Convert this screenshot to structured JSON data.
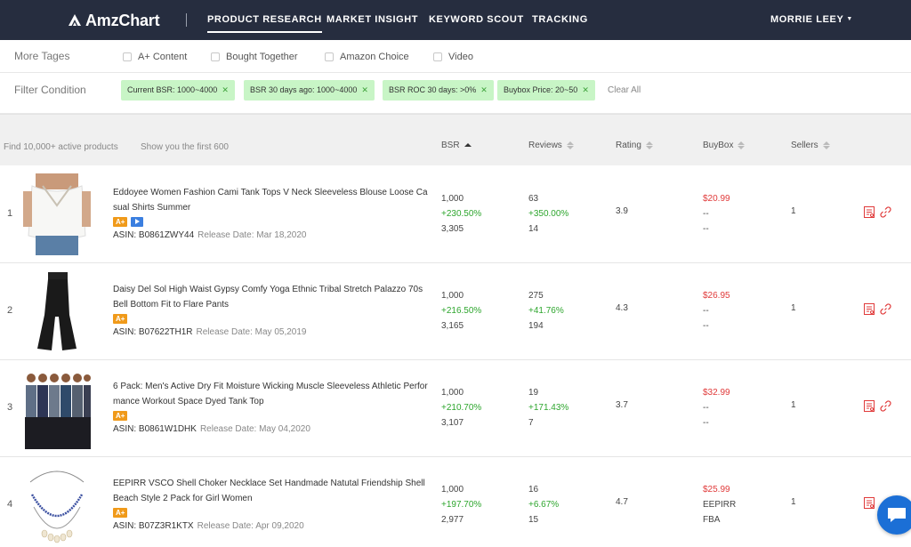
{
  "brand": {
    "name": "AmzChart"
  },
  "nav": {
    "items": [
      {
        "label": "PRODUCT RESEARCH",
        "active": true
      },
      {
        "label": "MARKET INSIGHT",
        "active": false
      },
      {
        "label": "KEYWORD SCOUT",
        "active": false
      },
      {
        "label": "TRACKING",
        "active": false
      }
    ],
    "user": "MORRIE LEEY"
  },
  "tags": {
    "label": "More Tages",
    "options": [
      {
        "label": "A+ Content",
        "checked": false
      },
      {
        "label": "Bought Together",
        "checked": false
      },
      {
        "label": "Amazon Choice",
        "checked": false
      },
      {
        "label": "Video",
        "checked": false
      }
    ]
  },
  "filters": {
    "label": "Filter Condition",
    "chips": [
      "Current BSR: 1000~4000",
      "BSR 30 days ago: 1000~4000",
      "BSR ROC 30 days: >0%",
      "Buybox Price: 20~50"
    ],
    "clear_label": "Clear All"
  },
  "table": {
    "note_total": "Find 10,000+ active products",
    "note_shown": "Show you the first 600",
    "columns": {
      "bsr": "BSR",
      "reviews": "Reviews",
      "rating": "Rating",
      "buybox": "BuyBox",
      "sellers": "Sellers"
    },
    "sort": {
      "column": "BSR",
      "direction": "ascending"
    },
    "rows": [
      {
        "index": "1",
        "title": "Eddoyee Women Fashion Cami Tank Tops V Neck Sleeveless Blouse Loose Casual Shirts Summer",
        "badges": [
          "A+",
          "video"
        ],
        "asin": "ASIN: B0861ZWY44",
        "release": "Release Date: Mar 18,2020",
        "bsr": [
          "1,000",
          "+230.50%",
          "3,305"
        ],
        "reviews": [
          "63",
          "+350.00%",
          "14"
        ],
        "rating": "3.9",
        "buybox": [
          "$20.99",
          "--",
          "--"
        ],
        "sellers": "1"
      },
      {
        "index": "2",
        "title": "Daisy Del Sol High Waist Gypsy Comfy Yoga Ethnic Tribal Stretch Palazzo 70s Bell Bottom Fit to Flare Pants",
        "badges": [
          "A+"
        ],
        "asin": "ASIN: B07622TH1R",
        "release": "Release Date: May 05,2019",
        "bsr": [
          "1,000",
          "+216.50%",
          "3,165"
        ],
        "reviews": [
          "275",
          "+41.76%",
          "194"
        ],
        "rating": "4.3",
        "buybox": [
          "$26.95",
          "--",
          "--"
        ],
        "sellers": "1"
      },
      {
        "index": "3",
        "title": "6 Pack: Men's Active Dry Fit Moisture Wicking Muscle Sleeveless Athletic Performance Workout Space Dyed Tank Top",
        "badges": [
          "A+"
        ],
        "asin": "ASIN: B0861W1DHK",
        "release": "Release Date: May 04,2020",
        "bsr": [
          "1,000",
          "+210.70%",
          "3,107"
        ],
        "reviews": [
          "19",
          "+171.43%",
          "7"
        ],
        "rating": "3.7",
        "buybox": [
          "$32.99",
          "--",
          "--"
        ],
        "sellers": "1"
      },
      {
        "index": "4",
        "title": "EEPIRR VSCO Shell Choker Necklace Set Handmade Natutal Friendship Shell Beach Style 2 Pack for Girl Women",
        "badges": [
          "A+"
        ],
        "asin": "ASIN: B07Z3R1KTX",
        "release": "Release Date: Apr 09,2020",
        "bsr": [
          "1,000",
          "+197.70%",
          "2,977"
        ],
        "reviews": [
          "16",
          "+6.67%",
          "15"
        ],
        "rating": "4.7",
        "buybox": [
          "$25.99",
          "EEPIRR",
          "FBA"
        ],
        "sellers": "1"
      }
    ]
  },
  "colors": {
    "topbar": "#262d3f",
    "chip_bg": "#c8f5c6",
    "positive": "#2ea62e",
    "price": "#e03a3a",
    "badge_aplus": "#f09a1a",
    "chat": "#1b6fd6"
  },
  "icons": [
    "logo-icon",
    "sort-icon",
    "report-icon",
    "link-icon",
    "chat-icon",
    "video-icon"
  ]
}
